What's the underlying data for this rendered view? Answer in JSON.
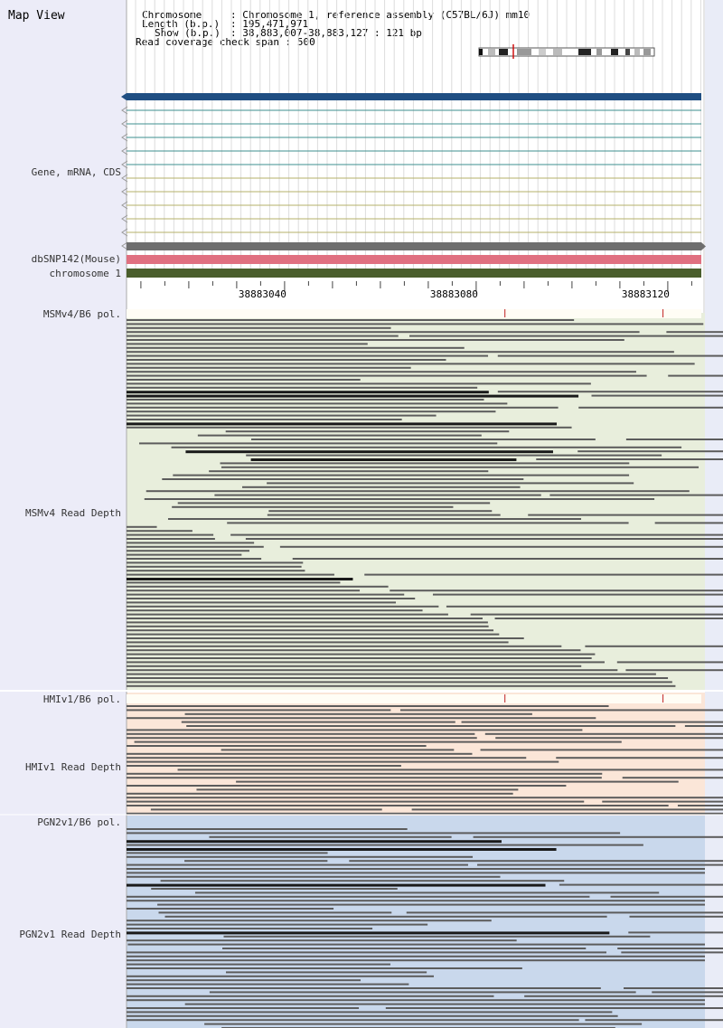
{
  "view_title": "Map View",
  "info": {
    "chromosome": {
      "label": "Chromosome",
      "value": "Chromosome 1, reference assembly (C57BL/6J) mm10"
    },
    "length": {
      "label": "Length (b.p.)",
      "value": "195,471,971"
    },
    "show": {
      "label": "Show (b.p.)",
      "value": "38,883,007-38,883,127 : 121 bp"
    },
    "coverage": {
      "label": "Read coverage check span",
      "value": "500"
    }
  },
  "tracks": {
    "gene": "Gene, mRNA, CDS",
    "dbsnp": "dbSNP142(Mouse)",
    "chromosome": "chromosome 1",
    "msm_pol": "MSMv4/B6 pol.",
    "msm_depth": "MSMv4 Read Depth",
    "hmi_pol": "HMIv1/B6 pol.",
    "hmi_depth": "HMIv1 Read Depth",
    "pgn_pol": "PGN2v1/B6 pol.",
    "pgn_depth": "PGN2v1 Read Depth"
  },
  "ruler": {
    "start": 38883007,
    "end": 38883127,
    "labels": [
      "38883040",
      "38883080",
      "38883120"
    ]
  },
  "colors": {
    "gene_main": "#1f4e82",
    "mrna": "#3e8f8f",
    "cds": "#b5b06a",
    "dbsnp_bar": "#6e6e6e",
    "snp_red": "#e07080",
    "chrom_green": "#4a5e2c",
    "read": "#5c5c5c",
    "msm_bg": "#e8eedc",
    "hmi_bg": "#fbe6d8",
    "pgn_bg": "#c9d8ec"
  },
  "snp_positions": [
    38883086,
    38883119
  ]
}
